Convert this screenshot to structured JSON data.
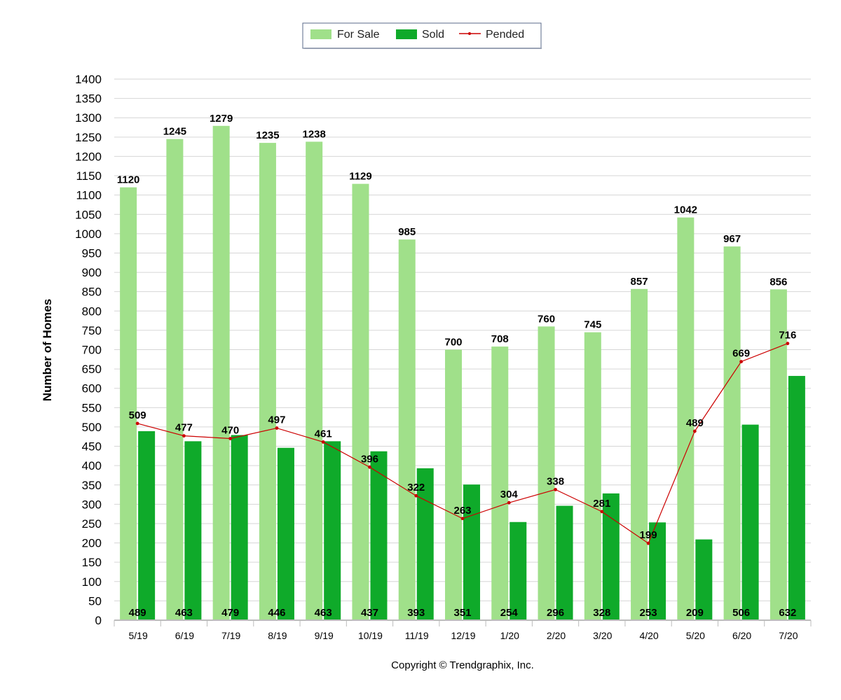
{
  "chart_data": {
    "type": "bar",
    "categories": [
      "5/19",
      "6/19",
      "7/19",
      "8/19",
      "9/19",
      "10/19",
      "11/19",
      "12/19",
      "1/20",
      "2/20",
      "3/20",
      "4/20",
      "5/20",
      "6/20",
      "7/20"
    ],
    "series": [
      {
        "name": "For Sale",
        "type": "bar",
        "color": "#a0e08a",
        "values": [
          1120,
          1245,
          1279,
          1235,
          1238,
          1129,
          985,
          700,
          708,
          760,
          745,
          857,
          1042,
          967,
          856
        ]
      },
      {
        "name": "Sold",
        "type": "bar",
        "color": "#0faa2a",
        "values": [
          489,
          463,
          479,
          446,
          463,
          437,
          393,
          351,
          254,
          296,
          328,
          253,
          209,
          506,
          632
        ]
      },
      {
        "name": "Pended",
        "type": "line",
        "color": "#cc0000",
        "values": [
          509,
          477,
          470,
          497,
          461,
          396,
          322,
          263,
          304,
          338,
          281,
          199,
          489,
          669,
          716
        ]
      }
    ],
    "xlabel": "",
    "ylabel": "Number of Homes",
    "ylim": [
      0,
      1400
    ],
    "ytick_step": 50,
    "grid": true,
    "legend_position": "top-center",
    "copyright": "Copyright © Trendgraphix, Inc."
  }
}
